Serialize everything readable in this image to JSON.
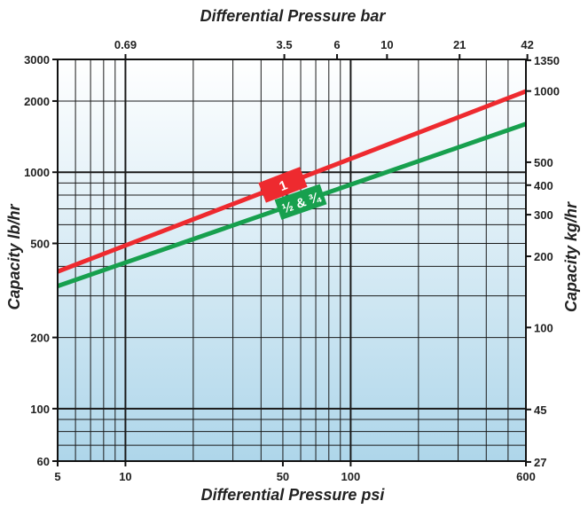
{
  "chart_data": {
    "type": "line",
    "x_scale": "log",
    "y_scale": "log",
    "xlabel_bottom": "Differential Pressure psi",
    "xlabel_top": "Differential Pressure bar",
    "ylabel_left": "Capacity lb/hr",
    "ylabel_right": "Capacity kg/hr",
    "xlim": [
      5,
      600
    ],
    "ylim": [
      60,
      3000
    ],
    "grid": true,
    "bottom_ticks": [
      {
        "value": 5,
        "label": "5"
      },
      {
        "value": 10,
        "label": "10"
      },
      {
        "value": 50,
        "label": "50"
      },
      {
        "value": 100,
        "label": "100"
      },
      {
        "value": 600,
        "label": "600"
      }
    ],
    "top_ticks": [
      {
        "value": 0.69,
        "label": "0.69"
      },
      {
        "value": 3.5,
        "label": "3.5"
      },
      {
        "value": 6,
        "label": "6"
      },
      {
        "value": 10,
        "label": "10"
      },
      {
        "value": 21,
        "label": "21"
      },
      {
        "value": 42,
        "label": "42"
      }
    ],
    "left_ticks": [
      {
        "value": 60,
        "label": "60"
      },
      {
        "value": 100,
        "label": "100"
      },
      {
        "value": 200,
        "label": "200"
      },
      {
        "value": 500,
        "label": "500"
      },
      {
        "value": 1000,
        "label": "1000"
      },
      {
        "value": 2000,
        "label": "2000"
      },
      {
        "value": 3000,
        "label": "3000"
      }
    ],
    "right_ticks": [
      {
        "value": 27,
        "label": "27"
      },
      {
        "value": 45,
        "label": "45"
      },
      {
        "value": 100,
        "label": "100"
      },
      {
        "value": 200,
        "label": "200"
      },
      {
        "value": 300,
        "label": "300"
      },
      {
        "value": 400,
        "label": "400"
      },
      {
        "value": 500,
        "label": "500"
      },
      {
        "value": 1000,
        "label": "1000"
      },
      {
        "value": 1350,
        "label": "1350"
      }
    ],
    "series": [
      {
        "name": "1",
        "color": "#ee2a2f",
        "label_color": "#ee2a2f",
        "x": [
          5,
          600
        ],
        "y": [
          380,
          2200
        ]
      },
      {
        "name": "½ & ¾",
        "color": "#17a04e",
        "label_color": "#17a04e",
        "x": [
          5,
          600
        ],
        "y": [
          330,
          1600
        ]
      }
    ],
    "background_gradient": [
      "#ffffff",
      "#aed6ea"
    ]
  }
}
